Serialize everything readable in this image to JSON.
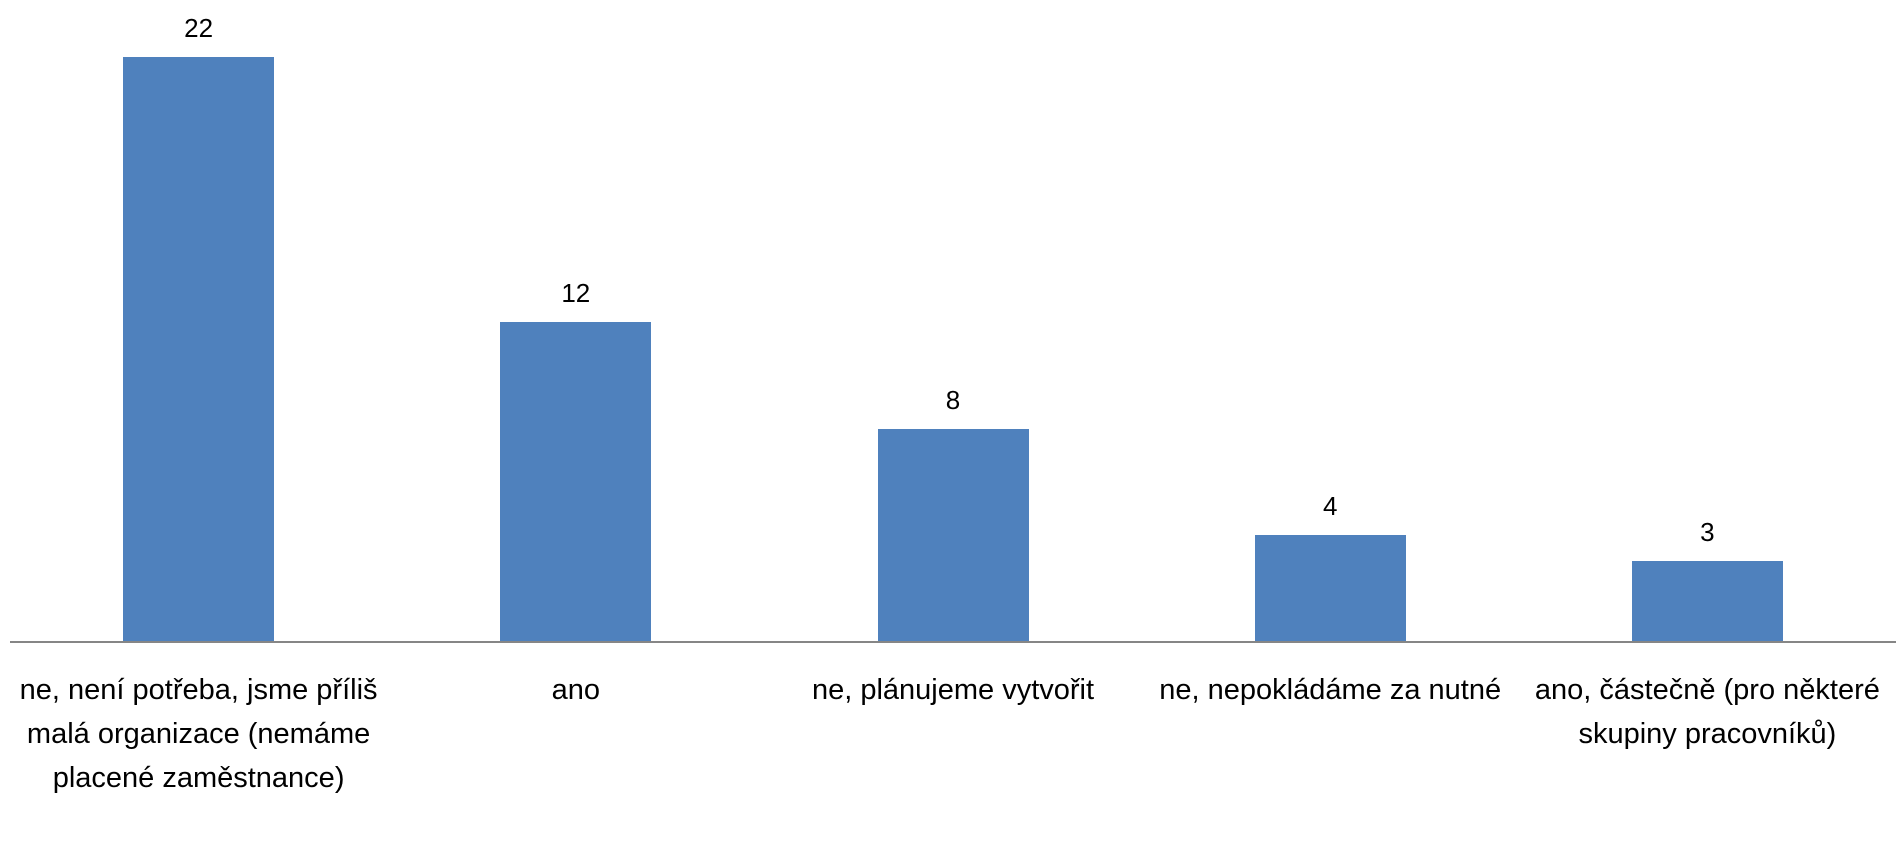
{
  "chart_data": {
    "type": "bar",
    "categories": [
      "ne, není potřeba, jsme příliš malá organizace (nemáme placené zaměstnance)",
      "ano",
      "ne, plánujeme vytvořit",
      "ne, nepokládáme za nutné",
      "ano, částečně (pro některé skupiny pracovníků)"
    ],
    "values": [
      22,
      12,
      8,
      4,
      3
    ],
    "color": "#4f81bd"
  }
}
